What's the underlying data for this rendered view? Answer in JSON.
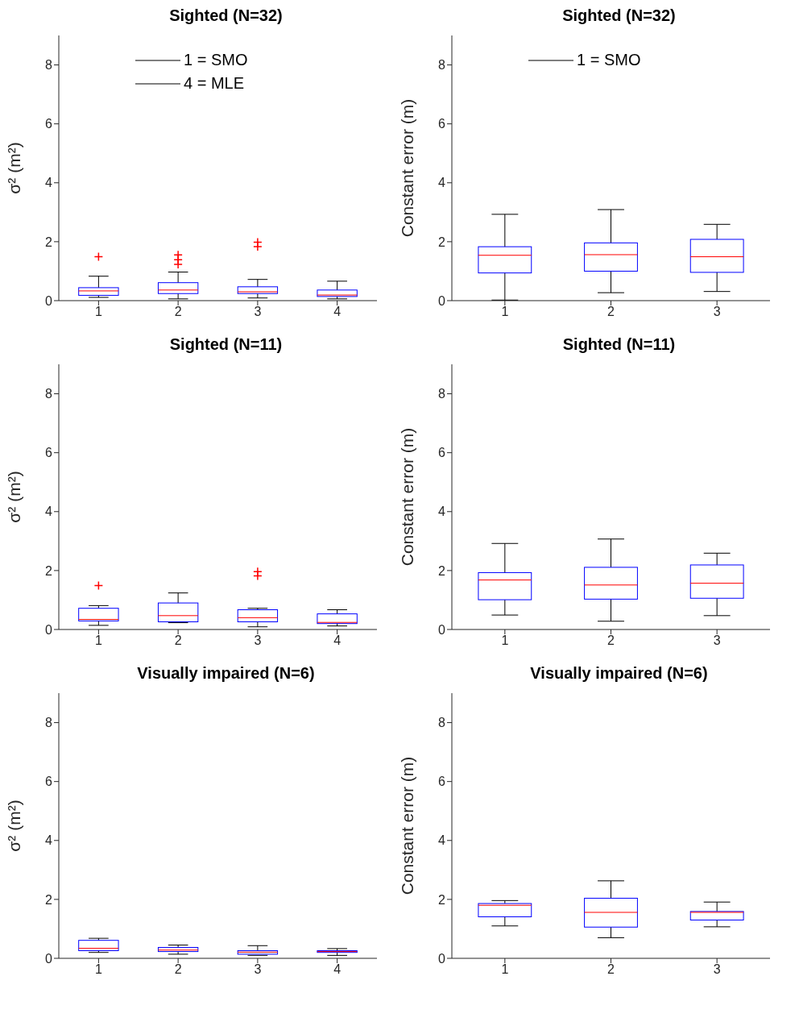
{
  "chart_data": [
    {
      "type": "box",
      "title": "Sighted (N=32)",
      "ylabel": "σ² (m²)",
      "categories": [
        "1",
        "2",
        "3",
        "4"
      ],
      "ylim": [
        0,
        9
      ],
      "yticks": [
        0,
        2,
        4,
        6,
        8
      ],
      "annotations": [
        "1 = SMO",
        "4 = MLE"
      ],
      "boxes": [
        {
          "low": 0.11,
          "q1": 0.18,
          "median": 0.33,
          "q3": 0.44,
          "high": 0.83,
          "outliers": [
            1.49
          ]
        },
        {
          "low": 0.06,
          "q1": 0.24,
          "median": 0.36,
          "q3": 0.61,
          "high": 0.97,
          "outliers": [
            1.23,
            1.39,
            1.55
          ]
        },
        {
          "low": 0.09,
          "q1": 0.24,
          "median": 0.3,
          "q3": 0.47,
          "high": 0.72,
          "outliers": [
            1.83,
            1.98
          ]
        },
        {
          "low": 0.06,
          "q1": 0.14,
          "median": 0.19,
          "q3": 0.36,
          "high": 0.66
        }
      ]
    },
    {
      "type": "box",
      "title": "Sighted (N=32)",
      "ylabel": "Constant error (m)",
      "categories": [
        "1",
        "2",
        "3"
      ],
      "ylim": [
        0,
        9
      ],
      "yticks": [
        0,
        2,
        4,
        6,
        8
      ],
      "annotations": [
        "1 = SMO"
      ],
      "boxes": [
        {
          "low": 0.02,
          "q1": 0.94,
          "median": 1.54,
          "q3": 1.83,
          "high": 2.93
        },
        {
          "low": 0.27,
          "q1": 1.0,
          "median": 1.56,
          "q3": 1.96,
          "high": 3.09
        },
        {
          "low": 0.31,
          "q1": 0.96,
          "median": 1.49,
          "q3": 2.08,
          "high": 2.59
        }
      ]
    },
    {
      "type": "box",
      "title": "Sighted (N=11)",
      "ylabel": "σ² (m²)",
      "categories": [
        "1",
        "2",
        "3",
        "4"
      ],
      "ylim": [
        0,
        9
      ],
      "yticks": [
        0,
        2,
        4,
        6,
        8
      ],
      "boxes": [
        {
          "low": 0.14,
          "q1": 0.29,
          "median": 0.34,
          "q3": 0.72,
          "high": 0.81,
          "outliers": [
            1.49
          ]
        },
        {
          "low": 0.23,
          "q1": 0.26,
          "median": 0.47,
          "q3": 0.9,
          "high": 1.24
        },
        {
          "low": 0.09,
          "q1": 0.26,
          "median": 0.4,
          "q3": 0.67,
          "high": 0.72,
          "outliers": [
            1.82,
            1.96
          ]
        },
        {
          "low": 0.12,
          "q1": 0.2,
          "median": 0.24,
          "q3": 0.53,
          "high": 0.67
        }
      ]
    },
    {
      "type": "box",
      "title": "Sighted (N=11)",
      "ylabel": "Constant error (m)",
      "categories": [
        "1",
        "2",
        "3"
      ],
      "ylim": [
        0,
        9
      ],
      "yticks": [
        0,
        2,
        4,
        6,
        8
      ],
      "boxes": [
        {
          "low": 0.49,
          "q1": 1.01,
          "median": 1.68,
          "q3": 1.93,
          "high": 2.92
        },
        {
          "low": 0.28,
          "q1": 1.03,
          "median": 1.51,
          "q3": 2.11,
          "high": 3.07
        },
        {
          "low": 0.47,
          "q1": 1.06,
          "median": 1.57,
          "q3": 2.19,
          "high": 2.59
        }
      ]
    },
    {
      "type": "box",
      "title": "Visually impaired (N=6)",
      "ylabel": "σ² (m²)",
      "categories": [
        "1",
        "2",
        "3",
        "4"
      ],
      "ylim": [
        0,
        9
      ],
      "yticks": [
        0,
        2,
        4,
        6,
        8
      ],
      "boxes": [
        {
          "low": 0.2,
          "q1": 0.26,
          "median": 0.34,
          "q3": 0.61,
          "high": 0.68
        },
        {
          "low": 0.14,
          "q1": 0.23,
          "median": 0.28,
          "q3": 0.37,
          "high": 0.45
        },
        {
          "low": 0.1,
          "q1": 0.14,
          "median": 0.21,
          "q3": 0.26,
          "high": 0.43
        },
        {
          "low": 0.1,
          "q1": 0.2,
          "median": 0.23,
          "q3": 0.26,
          "high": 0.33
        }
      ]
    },
    {
      "type": "box",
      "title": "Visually impaired (N=6)",
      "ylabel": "Constant error (m)",
      "categories": [
        "1",
        "2",
        "3"
      ],
      "ylim": [
        0,
        9
      ],
      "yticks": [
        0,
        2,
        4,
        6,
        8
      ],
      "boxes": [
        {
          "low": 1.1,
          "q1": 1.41,
          "median": 1.8,
          "q3": 1.86,
          "high": 1.96
        },
        {
          "low": 0.7,
          "q1": 1.06,
          "median": 1.56,
          "q3": 2.04,
          "high": 2.63
        },
        {
          "low": 1.07,
          "q1": 1.3,
          "median": 1.56,
          "q3": 1.59,
          "high": 1.91
        }
      ]
    }
  ]
}
